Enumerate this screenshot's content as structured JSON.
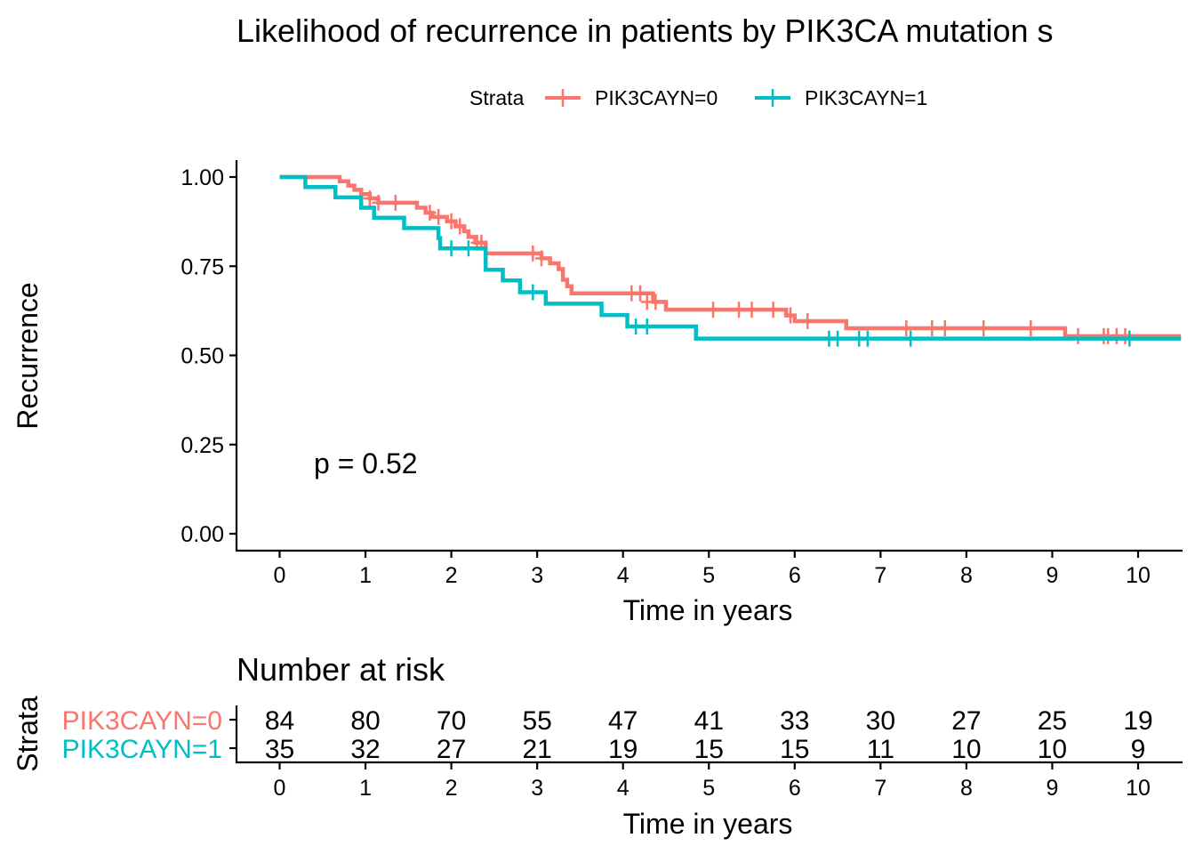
{
  "chart_data": [
    {
      "type": "line",
      "subtype": "kaplan-meier step",
      "title": "Likelihood of recurrence in patients by PIK3CA mutation s",
      "xlabel": "Time in years",
      "ylabel": "Recurrence",
      "xlim": [
        -0.5,
        10.5
      ],
      "ylim": [
        -0.05,
        1.05
      ],
      "x_ticks": [
        "0",
        "1",
        "2",
        "3",
        "4",
        "5",
        "6",
        "7",
        "8",
        "9",
        "10"
      ],
      "y_ticks": [
        "0.00",
        "0.25",
        "0.50",
        "0.75",
        "1.00"
      ],
      "grid": false,
      "legend": {
        "title": "Strata",
        "position": "top",
        "entries": [
          "PIK3CAYN=0",
          "PIK3CAYN=1"
        ]
      },
      "annotation": "p = 0.52",
      "series": [
        {
          "name": "PIK3CAYN=0",
          "color": "#F8766D",
          "steps": [
            [
              0,
              1.0
            ],
            [
              0.7,
              0.988
            ],
            [
              0.8,
              0.976
            ],
            [
              0.87,
              0.964
            ],
            [
              0.95,
              0.952
            ],
            [
              1.05,
              0.94
            ],
            [
              1.15,
              0.928
            ],
            [
              1.6,
              0.914
            ],
            [
              1.7,
              0.9
            ],
            [
              1.78,
              0.888
            ],
            [
              1.95,
              0.876
            ],
            [
              2.05,
              0.862
            ],
            [
              2.15,
              0.848
            ],
            [
              2.2,
              0.832
            ],
            [
              2.28,
              0.816
            ],
            [
              2.4,
              0.786
            ],
            [
              3.05,
              0.772
            ],
            [
              3.15,
              0.758
            ],
            [
              3.25,
              0.742
            ],
            [
              3.3,
              0.712
            ],
            [
              3.35,
              0.694
            ],
            [
              3.4,
              0.674
            ],
            [
              4.35,
              0.65
            ],
            [
              4.5,
              0.628
            ],
            [
              5.9,
              0.612
            ],
            [
              6.0,
              0.596
            ],
            [
              6.6,
              0.576
            ],
            [
              9.15,
              0.554
            ],
            [
              10.5,
              0.554
            ]
          ],
          "censors": [
            [
              1.05,
              0.94
            ],
            [
              1.15,
              0.928
            ],
            [
              1.35,
              0.928
            ],
            [
              1.75,
              0.9
            ],
            [
              1.85,
              0.888
            ],
            [
              2.0,
              0.876
            ],
            [
              2.1,
              0.862
            ],
            [
              2.3,
              0.816
            ],
            [
              2.35,
              0.816
            ],
            [
              2.95,
              0.786
            ],
            [
              3.05,
              0.772
            ],
            [
              4.1,
              0.674
            ],
            [
              4.2,
              0.674
            ],
            [
              4.28,
              0.65
            ],
            [
              4.38,
              0.65
            ],
            [
              5.05,
              0.628
            ],
            [
              5.35,
              0.628
            ],
            [
              5.5,
              0.628
            ],
            [
              5.75,
              0.628
            ],
            [
              5.95,
              0.612
            ],
            [
              6.15,
              0.596
            ],
            [
              7.3,
              0.576
            ],
            [
              7.6,
              0.576
            ],
            [
              7.75,
              0.576
            ],
            [
              8.2,
              0.576
            ],
            [
              8.75,
              0.576
            ],
            [
              9.3,
              0.554
            ],
            [
              9.6,
              0.554
            ],
            [
              9.65,
              0.554
            ],
            [
              9.75,
              0.554
            ],
            [
              9.85,
              0.554
            ]
          ]
        },
        {
          "name": "PIK3CAYN=1",
          "color": "#00BFC4",
          "steps": [
            [
              0,
              1.0
            ],
            [
              0.3,
              0.972
            ],
            [
              0.65,
              0.943
            ],
            [
              0.95,
              0.914
            ],
            [
              1.1,
              0.886
            ],
            [
              1.45,
              0.857
            ],
            [
              1.85,
              0.829
            ],
            [
              1.87,
              0.8
            ],
            [
              2.4,
              0.74
            ],
            [
              2.6,
              0.71
            ],
            [
              2.8,
              0.677
            ],
            [
              3.1,
              0.645
            ],
            [
              3.75,
              0.613
            ],
            [
              4.05,
              0.581
            ],
            [
              4.85,
              0.547
            ],
            [
              10.5,
              0.547
            ]
          ],
          "censors": [
            [
              2.0,
              0.8
            ],
            [
              2.2,
              0.8
            ],
            [
              2.95,
              0.677
            ],
            [
              4.15,
              0.581
            ],
            [
              4.28,
              0.581
            ],
            [
              6.4,
              0.547
            ],
            [
              6.5,
              0.547
            ],
            [
              6.75,
              0.547
            ],
            [
              6.85,
              0.547
            ],
            [
              7.35,
              0.547
            ],
            [
              9.9,
              0.547
            ]
          ]
        }
      ]
    },
    {
      "type": "table",
      "title": "Number at risk",
      "row_axis_label": "Strata",
      "xlabel": "Time in years",
      "x": [
        0,
        1,
        2,
        3,
        4,
        5,
        6,
        7,
        8,
        9,
        10
      ],
      "x_ticks": [
        "0",
        "1",
        "2",
        "3",
        "4",
        "5",
        "6",
        "7",
        "8",
        "9",
        "10"
      ],
      "rows": [
        {
          "name": "PIK3CAYN=0",
          "color": "#F8766D",
          "values": [
            "84",
            "80",
            "70",
            "55",
            "47",
            "41",
            "33",
            "30",
            "27",
            "25",
            "19"
          ]
        },
        {
          "name": "PIK3CAYN=1",
          "color": "#00BFC4",
          "values": [
            "35",
            "32",
            "27",
            "21",
            "19",
            "15",
            "15",
            "11",
            "10",
            "10",
            "9"
          ]
        }
      ]
    }
  ]
}
